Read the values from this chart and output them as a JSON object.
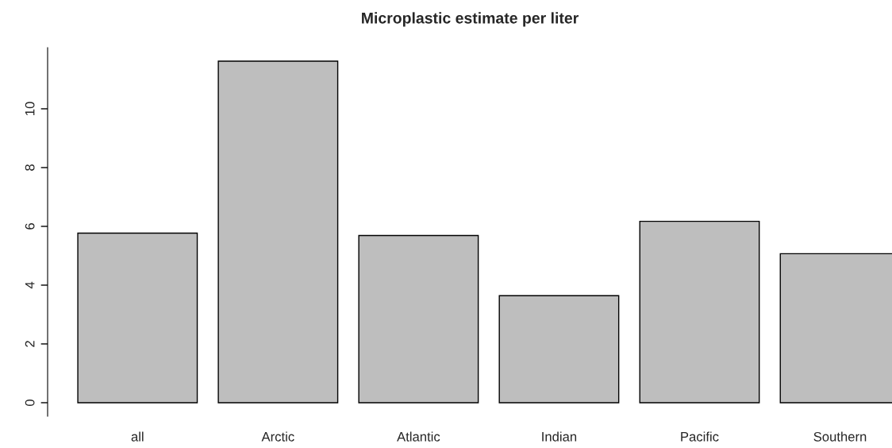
{
  "chart_data": {
    "type": "bar",
    "title": "Microplastic estimate per liter",
    "categories": [
      "all",
      "Arctic",
      "Atlantic",
      "Indian",
      "Pacific",
      "Southern"
    ],
    "values": [
      5.77,
      11.62,
      5.69,
      3.64,
      6.17,
      5.07
    ],
    "color": "#bebebe",
    "ylim": [
      -0.46,
      12.08
    ],
    "yticks": [
      0,
      2,
      4,
      6,
      8,
      10
    ],
    "grid": false
  }
}
